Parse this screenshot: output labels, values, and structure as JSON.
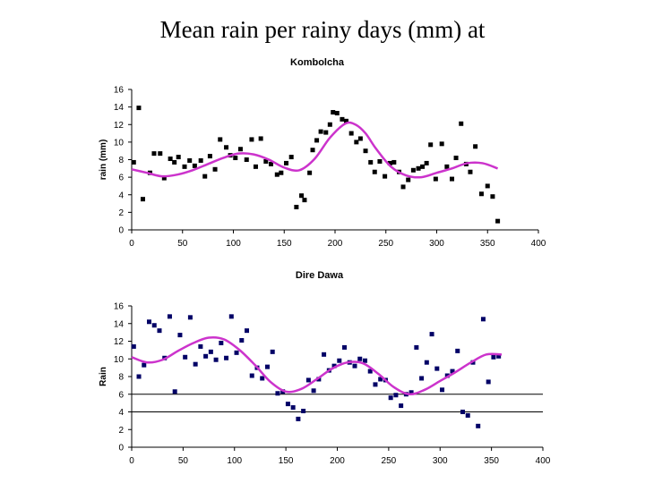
{
  "page_title": "Mean rain per rainy days (mm) at",
  "colors": {
    "marker": "#000000",
    "marker_dire_dawa": "#000066",
    "trend": "#cc33cc",
    "axis": "#000000",
    "background": "#ffffff"
  },
  "chart_data": [
    {
      "type": "scatter",
      "title": "Kombolcha",
      "xlabel": "",
      "ylabel": "rain (mm)",
      "xlim": [
        0,
        400
      ],
      "ylim": [
        0,
        16
      ],
      "x_ticks": [
        "0",
        "50",
        "100",
        "150",
        "200",
        "250",
        "300",
        "350",
        "400"
      ],
      "y_ticks": [
        "0",
        "2",
        "4",
        "6",
        "8",
        "10",
        "12",
        "14",
        "16"
      ],
      "grid": false,
      "reference_lines": [],
      "series": [
        {
          "name": "observations",
          "kind": "points",
          "x": [
            2,
            7,
            11,
            18,
            22,
            28,
            32,
            38,
            42,
            46,
            52,
            57,
            62,
            68,
            72,
            77,
            82,
            87,
            93,
            97,
            102,
            107,
            113,
            118,
            122,
            127,
            132,
            137,
            143,
            147,
            152,
            157,
            162,
            167,
            170,
            175,
            178,
            182,
            186,
            191,
            195,
            198,
            202,
            207,
            211,
            216,
            221,
            225,
            230,
            235,
            239,
            244,
            249,
            254,
            258,
            263,
            267,
            272,
            277,
            282,
            286,
            290,
            294,
            299,
            305,
            310,
            315,
            319,
            324,
            329,
            333,
            338,
            344,
            350,
            355,
            360
          ],
          "y": [
            7.7,
            13.9,
            3.5,
            6.5,
            8.7,
            8.7,
            5.9,
            8.1,
            7.7,
            8.3,
            7.2,
            7.9,
            7.3,
            7.9,
            6.1,
            8.4,
            6.9,
            10.3,
            9.4,
            8.5,
            8.2,
            9.2,
            8.0,
            10.3,
            7.2,
            10.4,
            7.8,
            7.5,
            6.3,
            6.5,
            7.6,
            8.3,
            2.6,
            3.9,
            3.4,
            6.5,
            9.1,
            10.2,
            11.2,
            11.1,
            12.0,
            13.4,
            13.3,
            12.6,
            12.4,
            11.0,
            10.0,
            10.4,
            9.0,
            7.7,
            6.6,
            7.8,
            6.1,
            7.6,
            7.7,
            6.6,
            4.9,
            5.7,
            6.8,
            7.0,
            7.2,
            7.6,
            9.7,
            5.8,
            9.8,
            7.2,
            5.8,
            8.2,
            12.1,
            7.5,
            6.6,
            9.5,
            4.1,
            5.0,
            3.8,
            1.0
          ],
          "values_note": "read off the plot; approximate"
        },
        {
          "name": "smoothed fit",
          "kind": "line",
          "x": [
            0,
            15,
            30,
            45,
            60,
            75,
            90,
            105,
            120,
            135,
            150,
            165,
            180,
            195,
            210,
            220,
            230,
            240,
            255,
            270,
            285,
            300,
            315,
            330,
            345,
            360
          ],
          "y": [
            6.9,
            6.5,
            6.1,
            6.3,
            6.8,
            7.5,
            8.2,
            8.7,
            8.6,
            8.0,
            7.1,
            6.8,
            8.1,
            10.5,
            12.1,
            12.0,
            11.0,
            9.3,
            7.2,
            6.2,
            6.0,
            6.5,
            7.0,
            7.6,
            7.6,
            7.0
          ]
        }
      ]
    },
    {
      "type": "scatter",
      "title": "Dire Dawa",
      "xlabel": "",
      "ylabel": "Rain",
      "xlim": [
        0,
        400
      ],
      "ylim": [
        0,
        16
      ],
      "x_ticks": [
        "0",
        "50",
        "100",
        "150",
        "200",
        "250",
        "300",
        "350",
        "400"
      ],
      "y_ticks": [
        "0",
        "2",
        "4",
        "6",
        "8",
        "10",
        "12",
        "14",
        "16"
      ],
      "grid": false,
      "reference_lines": [
        6,
        4
      ],
      "series": [
        {
          "name": "observations",
          "kind": "points",
          "x": [
            2,
            7,
            12,
            17,
            22,
            27,
            32,
            37,
            42,
            47,
            52,
            57,
            62,
            67,
            72,
            77,
            82,
            87,
            92,
            97,
            102,
            107,
            112,
            117,
            122,
            127,
            132,
            137,
            142,
            147,
            152,
            157,
            162,
            167,
            172,
            177,
            182,
            187,
            192,
            197,
            202,
            207,
            212,
            217,
            222,
            227,
            232,
            237,
            242,
            247,
            252,
            257,
            262,
            267,
            272,
            277,
            282,
            287,
            292,
            297,
            302,
            307,
            312,
            317,
            322,
            327,
            332,
            337,
            342,
            347,
            352,
            357
          ],
          "y": [
            11.4,
            8.0,
            9.3,
            14.2,
            13.8,
            13.2,
            10.1,
            14.8,
            6.3,
            12.7,
            10.2,
            14.7,
            9.4,
            11.4,
            10.3,
            10.8,
            9.9,
            11.8,
            10.1,
            14.8,
            10.7,
            12.1,
            13.2,
            8.1,
            9.0,
            7.8,
            9.1,
            10.8,
            6.1,
            6.3,
            4.9,
            4.5,
            3.2,
            4.1,
            7.6,
            6.4,
            7.7,
            10.5,
            8.7,
            9.2,
            9.8,
            11.3,
            9.6,
            9.2,
            10.0,
            9.8,
            8.6,
            7.1,
            7.7,
            7.6,
            5.6,
            5.9,
            4.7,
            6.0,
            6.2,
            11.3,
            7.8,
            9.6,
            12.8,
            8.9,
            6.5,
            8.1,
            8.6,
            10.9,
            4.0,
            3.6,
            9.6,
            2.4,
            14.5,
            7.4,
            10.2,
            10.3
          ],
          "values_note": "read off the plot; approximate"
        },
        {
          "name": "smoothed fit",
          "kind": "line",
          "x": [
            0,
            15,
            30,
            45,
            60,
            75,
            90,
            105,
            120,
            135,
            150,
            165,
            180,
            195,
            210,
            225,
            240,
            255,
            270,
            285,
            300,
            315,
            330,
            345,
            360
          ],
          "y": [
            10.2,
            9.6,
            9.9,
            10.9,
            11.8,
            12.4,
            12.2,
            11.0,
            9.3,
            7.4,
            6.3,
            6.6,
            7.7,
            8.9,
            9.6,
            9.5,
            8.3,
            6.8,
            6.0,
            6.5,
            7.5,
            8.5,
            9.6,
            10.5,
            10.5
          ]
        }
      ]
    }
  ]
}
